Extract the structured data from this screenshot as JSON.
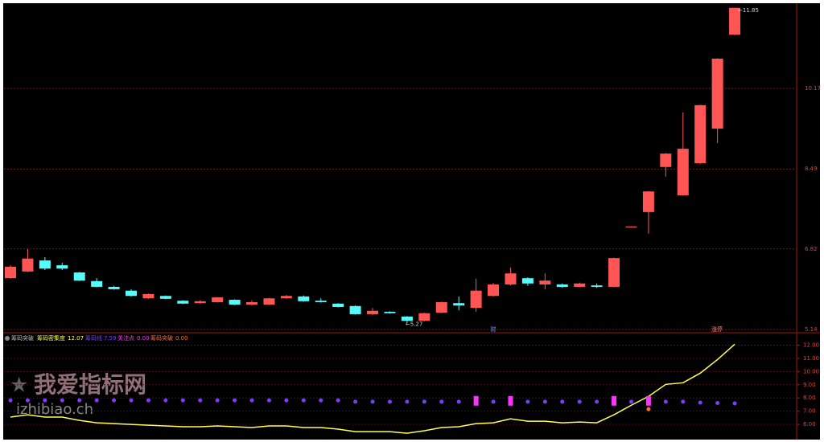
{
  "chart_data": [
    {
      "type": "candlestick",
      "open": [
        6.21,
        6.35,
        6.58,
        6.48,
        6.33,
        6.15,
        6.03,
        5.95,
        5.79,
        5.84,
        5.74,
        5.69,
        5.71,
        5.76,
        5.66,
        5.66,
        5.79,
        5.83,
        5.74,
        5.68,
        5.63,
        5.46,
        5.51,
        5.41,
        5.32,
        5.49,
        5.69,
        5.59,
        5.84,
        6.08,
        6.21,
        6.08,
        6.08,
        6.03,
        6.06,
        6.03,
        7.27,
        7.59,
        8.53,
        7.94,
        8.61,
        9.33,
        11.29
      ],
      "high": [
        6.48,
        6.82,
        6.65,
        6.53,
        6.34,
        6.21,
        6.05,
        5.98,
        5.89,
        5.85,
        5.75,
        5.75,
        5.82,
        5.77,
        5.75,
        5.8,
        5.86,
        5.85,
        5.79,
        5.69,
        5.64,
        5.59,
        5.52,
        5.42,
        5.49,
        5.72,
        5.83,
        6.2,
        6.11,
        6.43,
        6.23,
        6.31,
        6.1,
        6.12,
        6.1,
        6.64,
        7.29,
        8.03,
        8.82,
        9.67,
        9.83,
        10.8,
        11.85
      ],
      "low": [
        6.2,
        6.34,
        6.38,
        6.38,
        6.15,
        6.02,
        5.97,
        5.83,
        5.78,
        5.77,
        5.67,
        5.68,
        5.7,
        5.65,
        5.64,
        5.65,
        5.78,
        5.72,
        5.7,
        5.6,
        5.45,
        5.44,
        5.47,
        5.27,
        5.31,
        5.48,
        5.54,
        5.51,
        5.83,
        6.06,
        6.05,
        5.98,
        6.01,
        6.02,
        6.01,
        6.02,
        7.27,
        7.14,
        8.33,
        7.93,
        8.59,
        9.03,
        11.28
      ],
      "close": [
        6.45,
        6.62,
        6.41,
        6.41,
        6.16,
        6.03,
        5.98,
        5.84,
        5.88,
        5.78,
        5.68,
        5.73,
        5.81,
        5.66,
        5.71,
        5.79,
        5.84,
        5.73,
        5.71,
        5.61,
        5.46,
        5.53,
        5.48,
        5.32,
        5.48,
        5.71,
        5.64,
        5.95,
        6.08,
        6.31,
        6.1,
        6.16,
        6.03,
        6.1,
        6.03,
        6.63,
        7.29,
        8.02,
        8.81,
        8.91,
        9.82,
        10.79,
        11.85
      ],
      "up_color": "#ff5555",
      "down_color": "#54fcfc",
      "ylim": [
        5.09,
        11.93
      ],
      "yticks": [
        5.14,
        6.82,
        8.49,
        10.17
      ],
      "grid": true,
      "high_label": "←11.85",
      "low_label": "←5.27",
      "markers": [
        "财",
        "涨停"
      ]
    },
    {
      "type": "indicator",
      "title": "筹码突破",
      "ylim": [
        4.97,
        12.7
      ],
      "yticks": [
        {
          "value": 6,
          "label": "6.00"
        },
        {
          "value": 7,
          "label": "7.00"
        },
        {
          "value": 8,
          "label": "8.00"
        },
        {
          "value": 9,
          "label": "9.00"
        },
        {
          "value": 10,
          "label": "10.00"
        },
        {
          "value": 11,
          "label": "11.00"
        },
        {
          "value": 12,
          "label": "12.00"
        }
      ],
      "series": [
        {
          "name": "筹码密集度",
          "legend_value": "12.07",
          "color": "#ffff55",
          "mark": "line",
          "values": [
            6.55,
            6.73,
            6.55,
            6.55,
            6.3,
            6.12,
            6.06,
            6.0,
            5.94,
            5.88,
            5.82,
            5.82,
            5.88,
            5.82,
            5.76,
            5.88,
            5.88,
            5.76,
            5.76,
            5.64,
            5.45,
            5.45,
            5.45,
            5.33,
            5.52,
            5.76,
            5.82,
            6.06,
            6.12,
            6.42,
            6.24,
            6.24,
            6.12,
            6.18,
            6.12,
            6.73,
            7.45,
            8.12,
            9.03,
            9.15,
            9.88,
            10.91,
            12.07
          ]
        },
        {
          "name": "筹码线",
          "legend_value": "7.59",
          "color": "#7b3cff",
          "mark": "dot",
          "values": [
            7.82,
            7.82,
            7.82,
            7.82,
            7.82,
            7.82,
            7.82,
            7.82,
            7.82,
            7.82,
            7.82,
            7.82,
            7.82,
            7.82,
            7.82,
            7.82,
            7.82,
            7.82,
            7.82,
            7.82,
            7.72,
            7.72,
            7.72,
            7.72,
            7.72,
            7.72,
            7.72,
            7.72,
            7.72,
            7.72,
            7.72,
            7.72,
            7.72,
            7.72,
            7.72,
            7.72,
            7.72,
            7.72,
            7.72,
            7.72,
            7.65,
            7.62,
            7.59
          ]
        },
        {
          "name": "关注点",
          "legend_value": "0.00",
          "color": "#ff33ff",
          "mark": "stick",
          "values": [
            null,
            null,
            null,
            null,
            null,
            null,
            null,
            null,
            null,
            null,
            null,
            null,
            null,
            null,
            null,
            null,
            null,
            null,
            null,
            null,
            null,
            null,
            null,
            null,
            null,
            null,
            null,
            8.15,
            null,
            8.15,
            null,
            null,
            null,
            null,
            null,
            8.15,
            null,
            8.15,
            null,
            null,
            null,
            null,
            null
          ]
        },
        {
          "name": "筹码突破",
          "legend_value": "0.00",
          "color": "#ff6a3d",
          "mark": "dot",
          "values": [
            null,
            null,
            null,
            null,
            null,
            null,
            null,
            null,
            null,
            null,
            null,
            null,
            null,
            null,
            null,
            null,
            null,
            null,
            null,
            null,
            null,
            null,
            null,
            null,
            null,
            null,
            null,
            null,
            null,
            null,
            null,
            null,
            null,
            null,
            null,
            null,
            null,
            7.15,
            null,
            null,
            null,
            null,
            null
          ]
        }
      ]
    }
  ],
  "watermark": {
    "title": "我爱指标网",
    "url": "izhibiao.ch"
  }
}
